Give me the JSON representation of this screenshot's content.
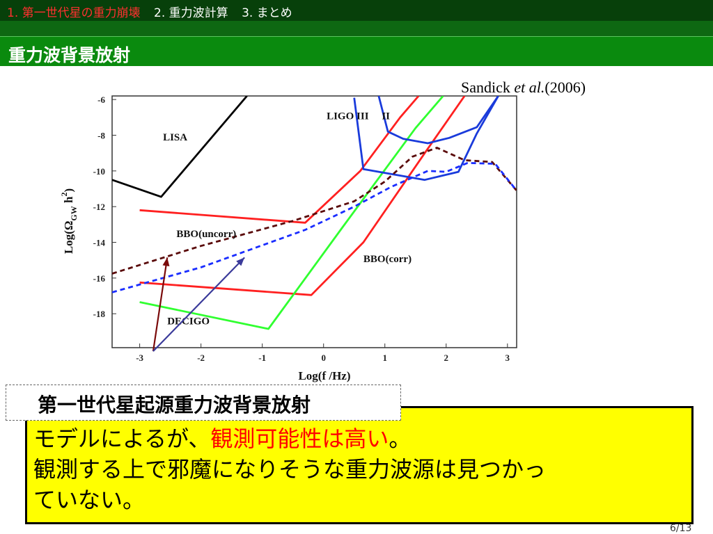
{
  "nav": {
    "items": [
      "1. 第一世代星の重力崩壊",
      "2. 重力波計算",
      "3. まとめ"
    ],
    "active_index": 0,
    "active_color": "#ff3030"
  },
  "slide": {
    "title": "重力波背景放射",
    "citation_prefix": "Sandick ",
    "citation_italic": "et al.",
    "citation_suffix": "(2006)",
    "page_number": "6/13"
  },
  "chart_data": {
    "type": "line",
    "xlabel": "Log(f /Hz)",
    "ylabel": "Log(Ω_GW h²)",
    "ylabel_main": "Log(Ω",
    "ylabel_sub": "GW",
    "ylabel_tail": " h",
    "ylabel_sup": "2",
    "ylabel_close": ")",
    "xlim": [
      -3.45,
      3.15
    ],
    "ylim": [
      -19.9,
      -5.8
    ],
    "xticks": [
      -3,
      -2,
      -1,
      0,
      1,
      2,
      3
    ],
    "yticks": [
      -6,
      -8,
      -10,
      -12,
      -14,
      -16,
      -18
    ],
    "labels": [
      {
        "text": "LISA",
        "x": -2.62,
        "y": -8.3
      },
      {
        "text": "LIGO III",
        "x": 0.05,
        "y": -7.1
      },
      {
        "text": "II",
        "x": 0.95,
        "y": -7.1
      },
      {
        "text": "BBO(uncorr)",
        "x": -2.4,
        "y": -13.7
      },
      {
        "text": "BBO(corr)",
        "x": 0.65,
        "y": -15.1
      },
      {
        "text": "DECIGO",
        "x": -2.55,
        "y": -18.6
      }
    ],
    "series": [
      {
        "color": "#000000",
        "dash": false,
        "points": [
          [
            -3.45,
            -10.5
          ],
          [
            -2.65,
            -11.45
          ],
          [
            -1.25,
            -5.8
          ]
        ]
      },
      {
        "color": "#ff2020",
        "dash": false,
        "points": [
          [
            -3.0,
            -12.2
          ],
          [
            -0.3,
            -12.9
          ],
          [
            0.6,
            -10.0
          ],
          [
            1.25,
            -7.0
          ],
          [
            1.55,
            -5.8
          ]
        ]
      },
      {
        "color": "#ff2020",
        "dash": false,
        "points": [
          [
            -3.0,
            -16.25
          ],
          [
            -0.2,
            -16.95
          ],
          [
            0.65,
            -14.0
          ],
          [
            1.65,
            -9.0
          ],
          [
            2.3,
            -5.8
          ]
        ]
      },
      {
        "color": "#30ff30",
        "dash": false,
        "points": [
          [
            -3.0,
            -17.35
          ],
          [
            -0.9,
            -18.85
          ],
          [
            0.3,
            -13.2
          ],
          [
            1.5,
            -7.6
          ],
          [
            1.95,
            -5.8
          ]
        ]
      },
      {
        "color": "#1a3bdb",
        "dash": false,
        "points": [
          [
            0.5,
            -5.9
          ],
          [
            0.65,
            -9.9
          ],
          [
            1.65,
            -10.5
          ],
          [
            2.2,
            -10.05
          ],
          [
            2.5,
            -7.9
          ],
          [
            2.85,
            -5.8
          ]
        ]
      },
      {
        "color": "#1a3bdb",
        "dash": false,
        "points": [
          [
            0.9,
            -5.8
          ],
          [
            1.05,
            -7.8
          ],
          [
            1.3,
            -8.2
          ],
          [
            1.7,
            -8.45
          ],
          [
            2.05,
            -8.15
          ],
          [
            2.5,
            -7.55
          ],
          [
            2.85,
            -5.8
          ]
        ]
      },
      {
        "color": "#5a0a0a",
        "dash": true,
        "points": [
          [
            -3.45,
            -15.75
          ],
          [
            -2.0,
            -14.2
          ],
          [
            -0.5,
            -12.8
          ],
          [
            0.5,
            -11.7
          ],
          [
            1.0,
            -10.6
          ],
          [
            1.45,
            -9.2
          ],
          [
            1.85,
            -8.7
          ],
          [
            2.3,
            -9.4
          ],
          [
            2.75,
            -9.5
          ],
          [
            3.15,
            -11.1
          ]
        ]
      },
      {
        "color": "#1a2dff",
        "dash": true,
        "points": [
          [
            -3.45,
            -16.8
          ],
          [
            -2.0,
            -15.4
          ],
          [
            -0.3,
            -13.3
          ],
          [
            0.5,
            -12.0
          ],
          [
            1.1,
            -10.9
          ],
          [
            1.7,
            -10.0
          ],
          [
            2.0,
            -10.05
          ],
          [
            2.35,
            -9.55
          ],
          [
            2.8,
            -9.6
          ],
          [
            3.15,
            -11.1
          ]
        ]
      }
    ],
    "arrows": [
      {
        "color": "#7a0a0a",
        "from": [
          -2.78,
          -20.1
        ],
        "to": [
          -2.55,
          -14.85
        ]
      },
      {
        "color": "#3a3a9a",
        "from": [
          -2.78,
          -20.1
        ],
        "to": [
          -1.29,
          -14.85
        ]
      }
    ]
  },
  "callout": {
    "text": "第一世代星起源重力波背景放射"
  },
  "note": {
    "line1_a": "モデルによるが、",
    "line1_red": "観測可能性は高い",
    "line1_b": "。",
    "line2": "観測する上で邪魔になりそうな重力波源は見つかっ",
    "line3": "ていない。"
  }
}
